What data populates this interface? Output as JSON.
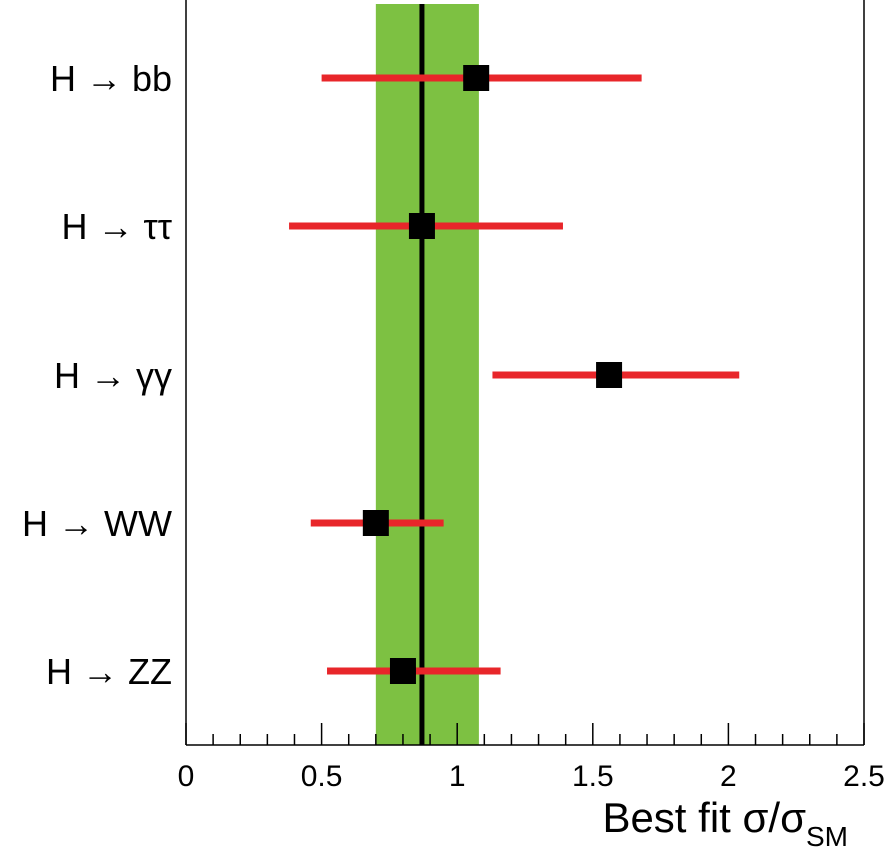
{
  "chart_data": {
    "type": "scatter",
    "orientation": "horizontal-error-bars",
    "categories": [
      "H → bb",
      "H → ττ",
      "H → γγ",
      "H → WW",
      "H → ZZ"
    ],
    "series": [
      {
        "values": [
          1.07,
          0.87,
          1.56,
          0.7,
          0.8
        ],
        "err_low": [
          0.57,
          0.49,
          0.43,
          0.24,
          0.28
        ],
        "err_high": [
          0.61,
          0.52,
          0.48,
          0.25,
          0.36
        ]
      }
    ],
    "combined": {
      "value": 0.87,
      "band_low": 0.7,
      "band_high": 1.08
    },
    "xlim": [
      0,
      2.5
    ],
    "x_ticks": [
      "0",
      "0.5",
      "1",
      "1.5",
      "2",
      "2.5"
    ],
    "xlabel": {
      "main": "Best fit σ/σ",
      "sub": "SM"
    },
    "ylabel": "",
    "title": "",
    "grid": false,
    "colors": {
      "band": "#7dc142",
      "error_bar": "#e8262a",
      "marker": "#000000",
      "combined_line": "#000000",
      "axis": "#000000"
    }
  }
}
